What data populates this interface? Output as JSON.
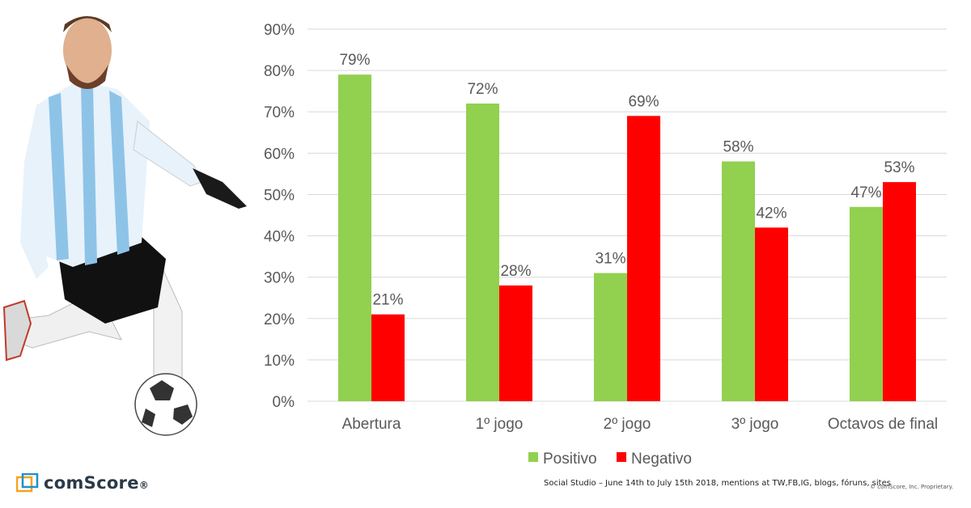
{
  "chart_data": {
    "type": "bar",
    "categories": [
      "Abertura",
      "1º jogo",
      "2º jogo",
      "3º jogo",
      "Octavos de final"
    ],
    "series": [
      {
        "name": "Positivo",
        "values": [
          79,
          72,
          31,
          58,
          47
        ],
        "color": "#92d050",
        "labels": [
          "79%",
          "72%",
          "31%",
          "58%",
          "47%"
        ]
      },
      {
        "name": "Negativo",
        "values": [
          21,
          28,
          69,
          42,
          53
        ],
        "color": "#ff0000",
        "labels": [
          "21%",
          "28%",
          "69%",
          "42%",
          "53%"
        ]
      }
    ],
    "ylim": [
      0,
      90
    ],
    "yticks": [
      0,
      10,
      20,
      30,
      40,
      50,
      60,
      70,
      80,
      90
    ],
    "ytick_labels": [
      "0%",
      "10%",
      "20%",
      "30%",
      "40%",
      "50%",
      "60%",
      "70%",
      "80%",
      "90%"
    ],
    "grid": true,
    "legend_position": "bottom"
  },
  "branding": {
    "logo_text": "comScore",
    "logo_mark": "®",
    "source_note": "Social Studio – June 14th to July 15th 2018, mentions at TW,FB,IG, blogs, fóruns, sites",
    "copyright": "© comScore, Inc. Proprietary."
  },
  "colors": {
    "grid": "#d9d9d9",
    "text": "#595959",
    "logo_orange": "#f7a21b",
    "logo_blue": "#1f8fd0"
  }
}
